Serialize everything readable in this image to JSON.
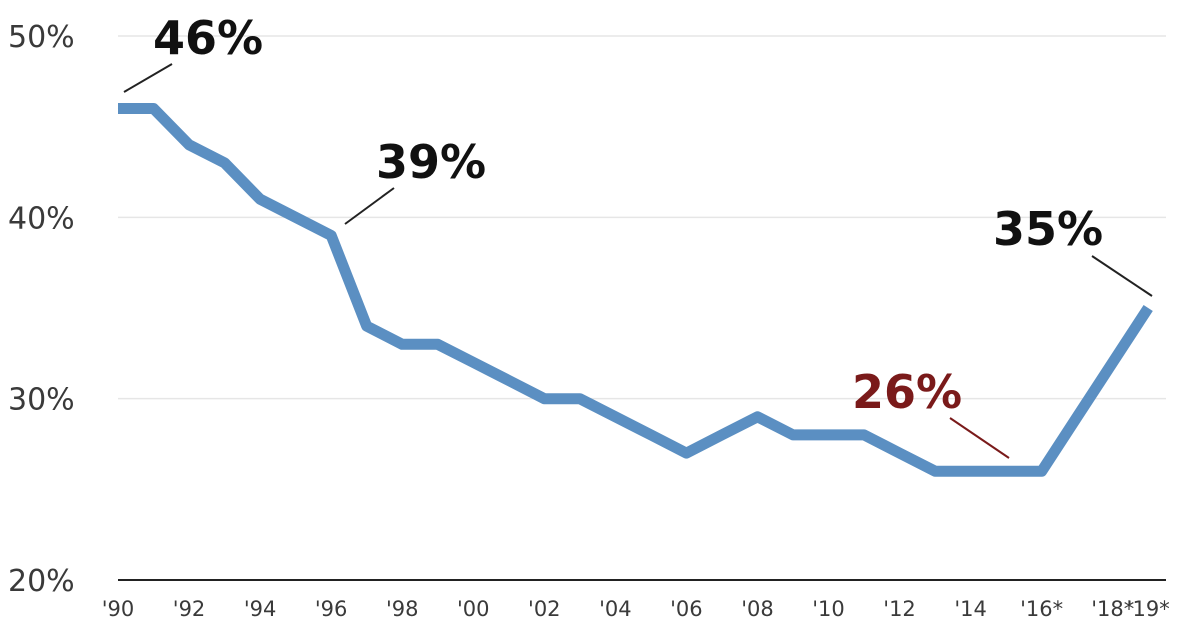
{
  "chart_data": {
    "type": "line",
    "title": "",
    "xlabel": "",
    "ylabel": "",
    "ylim": [
      20,
      50
    ],
    "xlim": [
      1990,
      2019.5
    ],
    "grid": true,
    "yticks": [
      {
        "value": 50,
        "label": "50%"
      },
      {
        "value": 40,
        "label": "40%"
      },
      {
        "value": 30,
        "label": "30%"
      },
      {
        "value": 20,
        "label": "20%"
      }
    ],
    "xticks": [
      {
        "value": 1990,
        "label": "'90"
      },
      {
        "value": 1992,
        "label": "'92"
      },
      {
        "value": 1994,
        "label": "'94"
      },
      {
        "value": 1996,
        "label": "'96"
      },
      {
        "value": 1998,
        "label": "'98"
      },
      {
        "value": 2000,
        "label": "'00"
      },
      {
        "value": 2002,
        "label": "'02"
      },
      {
        "value": 2004,
        "label": "'04"
      },
      {
        "value": 2006,
        "label": "'06"
      },
      {
        "value": 2008,
        "label": "'08"
      },
      {
        "value": 2010,
        "label": "'10"
      },
      {
        "value": 2012,
        "label": "'12"
      },
      {
        "value": 2014,
        "label": "'14"
      },
      {
        "value": 2016,
        "label": "'16*"
      },
      {
        "value": 2018,
        "label": "'18*"
      },
      {
        "value": 2019,
        "label": "'19*"
      }
    ],
    "series": [
      {
        "color": "#5b8fc2",
        "x": [
          1990,
          1991,
          1992,
          1993,
          1994,
          1995,
          1996,
          1997,
          1998,
          1999,
          2000,
          2001,
          2002,
          2003,
          2004,
          2005,
          2006,
          2007,
          2008,
          2009,
          2010,
          2011,
          2012,
          2013,
          2014,
          2015,
          2016,
          2017,
          2018,
          2019
        ],
        "y": [
          46,
          46,
          44,
          43,
          41,
          40,
          39,
          34,
          33,
          33,
          32,
          31,
          30,
          30,
          29,
          28,
          27,
          28,
          29,
          28,
          28,
          28,
          27,
          26,
          26,
          26,
          26,
          29,
          32,
          35
        ]
      }
    ],
    "annotations": [
      {
        "label": "46%",
        "x": 1990,
        "y": 46,
        "color": "#111111"
      },
      {
        "label": "39%",
        "x": 1996,
        "y": 39,
        "color": "#111111"
      },
      {
        "label": "26%",
        "x": 2014.8,
        "y": 26,
        "color": "#7a1a1a"
      },
      {
        "label": "35%",
        "x": 2019,
        "y": 35,
        "color": "#111111"
      }
    ]
  }
}
